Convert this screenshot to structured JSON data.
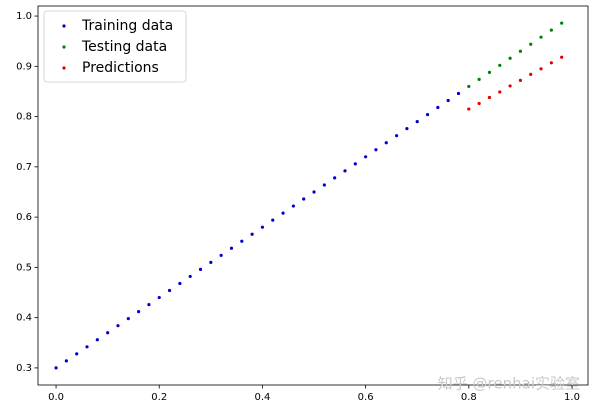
{
  "chart_data": {
    "type": "scatter",
    "series": [
      {
        "name": "Training data",
        "color": "#0000cc",
        "x": [
          0,
          0.02,
          0.04,
          0.06,
          0.08,
          0.1,
          0.12,
          0.14,
          0.16,
          0.18,
          0.2,
          0.22,
          0.24,
          0.26,
          0.28,
          0.3,
          0.32,
          0.34,
          0.36,
          0.38,
          0.4,
          0.42,
          0.44,
          0.46,
          0.48,
          0.5,
          0.52,
          0.54,
          0.56,
          0.58,
          0.6,
          0.62,
          0.64,
          0.66,
          0.68,
          0.7,
          0.72,
          0.74,
          0.76,
          0.78
        ],
        "values": [
          0.3,
          0.314,
          0.328,
          0.342,
          0.356,
          0.37,
          0.384,
          0.398,
          0.412,
          0.426,
          0.44,
          0.454,
          0.468,
          0.482,
          0.496,
          0.51,
          0.524,
          0.538,
          0.552,
          0.566,
          0.58,
          0.594,
          0.608,
          0.622,
          0.636,
          0.65,
          0.664,
          0.678,
          0.692,
          0.706,
          0.72,
          0.734,
          0.748,
          0.762,
          0.776,
          0.79,
          0.804,
          0.818,
          0.832,
          0.846
        ]
      },
      {
        "name": "Testing data",
        "color": "#008000",
        "x": [
          0.8,
          0.82,
          0.84,
          0.86,
          0.88,
          0.9,
          0.92,
          0.94,
          0.96,
          0.98
        ],
        "values": [
          0.86,
          0.874,
          0.888,
          0.902,
          0.916,
          0.93,
          0.944,
          0.958,
          0.972,
          0.986
        ]
      },
      {
        "name": "Predictions",
        "color": "#e00000",
        "x": [
          0.8,
          0.82,
          0.84,
          0.86,
          0.88,
          0.9,
          0.92,
          0.94,
          0.96,
          0.98
        ],
        "values": [
          0.815,
          0.826,
          0.838,
          0.849,
          0.861,
          0.872,
          0.884,
          0.895,
          0.907,
          0.918
        ]
      }
    ],
    "xlim": [
      -0.035,
      1.031
    ],
    "ylim": [
      0.266,
      1.02
    ],
    "xticks": [
      {
        "value": 0,
        "label": "0.0"
      },
      {
        "value": 0.2,
        "label": "0.2"
      },
      {
        "value": 0.4,
        "label": "0.4"
      },
      {
        "value": 0.6,
        "label": "0.6"
      },
      {
        "value": 0.8,
        "label": "0.8"
      },
      {
        "value": 1,
        "label": "1.0"
      }
    ],
    "yticks": [
      0.3,
      0.4,
      0.5,
      0.6,
      0.7,
      0.8,
      0.9,
      {
        "value": 1,
        "label": "1.0"
      }
    ],
    "legend": "upper left",
    "watermark": "知乎 @renhai实验室"
  }
}
